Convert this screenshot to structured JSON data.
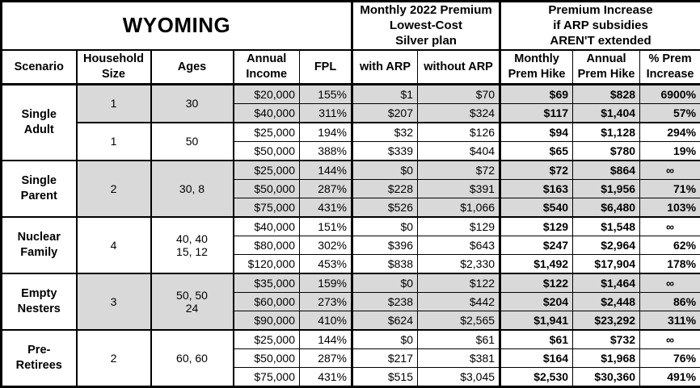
{
  "table": {
    "title": "WYOMING",
    "section_headers": {
      "premium": "Monthly 2022 Premium\nLowest-Cost\nSilver plan",
      "increase": "Premium Increase\nif ARP subsidies\nAREN'T extended"
    },
    "columns": [
      "Scenario",
      "Household\nSize",
      "Ages",
      "Annual\nIncome",
      "FPL",
      "with ARP",
      "without ARP",
      "Monthly\nPrem Hike",
      "Annual\nPrem Hike",
      "% Prem\nIncrease"
    ],
    "colors": {
      "shaded_row": "#d9d9d9",
      "border": "#000000",
      "background": "#ffffff"
    },
    "groups": [
      {
        "scenario": "Single\nAdult",
        "subgroups": [
          {
            "household": "1",
            "ages": "30",
            "shaded": true,
            "rows": [
              {
                "income": "$20,000",
                "fpl": "155%",
                "with_arp": "$1",
                "without_arp": "$70",
                "monthly_hike": "$69",
                "annual_hike": "$828",
                "pct_increase": "6900%"
              },
              {
                "income": "$40,000",
                "fpl": "311%",
                "with_arp": "$207",
                "without_arp": "$324",
                "monthly_hike": "$117",
                "annual_hike": "$1,404",
                "pct_increase": "57%"
              }
            ]
          },
          {
            "household": "1",
            "ages": "50",
            "shaded": false,
            "rows": [
              {
                "income": "$25,000",
                "fpl": "194%",
                "with_arp": "$32",
                "without_arp": "$126",
                "monthly_hike": "$94",
                "annual_hike": "$1,128",
                "pct_increase": "294%"
              },
              {
                "income": "$50,000",
                "fpl": "388%",
                "with_arp": "$339",
                "without_arp": "$404",
                "monthly_hike": "$65",
                "annual_hike": "$780",
                "pct_increase": "19%"
              }
            ]
          }
        ]
      },
      {
        "scenario": "Single\nParent",
        "subgroups": [
          {
            "household": "2",
            "ages": "30, 8",
            "shaded": true,
            "rows": [
              {
                "income": "$25,000",
                "fpl": "144%",
                "with_arp": "$0",
                "without_arp": "$72",
                "monthly_hike": "$72",
                "annual_hike": "$864",
                "pct_increase": "∞"
              },
              {
                "income": "$50,000",
                "fpl": "287%",
                "with_arp": "$228",
                "without_arp": "$391",
                "monthly_hike": "$163",
                "annual_hike": "$1,956",
                "pct_increase": "71%"
              },
              {
                "income": "$75,000",
                "fpl": "431%",
                "with_arp": "$526",
                "without_arp": "$1,066",
                "monthly_hike": "$540",
                "annual_hike": "$6,480",
                "pct_increase": "103%"
              }
            ]
          }
        ]
      },
      {
        "scenario": "Nuclear\nFamily",
        "subgroups": [
          {
            "household": "4",
            "ages": "40, 40\n15, 12",
            "shaded": false,
            "rows": [
              {
                "income": "$40,000",
                "fpl": "151%",
                "with_arp": "$0",
                "without_arp": "$129",
                "monthly_hike": "$129",
                "annual_hike": "$1,548",
                "pct_increase": "∞"
              },
              {
                "income": "$80,000",
                "fpl": "302%",
                "with_arp": "$396",
                "without_arp": "$643",
                "monthly_hike": "$247",
                "annual_hike": "$2,964",
                "pct_increase": "62%"
              },
              {
                "income": "$120,000",
                "fpl": "453%",
                "with_arp": "$838",
                "without_arp": "$2,330",
                "monthly_hike": "$1,492",
                "annual_hike": "$17,904",
                "pct_increase": "178%"
              }
            ]
          }
        ]
      },
      {
        "scenario": "Empty\nNesters",
        "subgroups": [
          {
            "household": "3",
            "ages": "50, 50\n24",
            "shaded": true,
            "rows": [
              {
                "income": "$35,000",
                "fpl": "159%",
                "with_arp": "$0",
                "without_arp": "$122",
                "monthly_hike": "$122",
                "annual_hike": "$1,464",
                "pct_increase": "∞"
              },
              {
                "income": "$60,000",
                "fpl": "273%",
                "with_arp": "$238",
                "without_arp": "$442",
                "monthly_hike": "$204",
                "annual_hike": "$2,448",
                "pct_increase": "86%"
              },
              {
                "income": "$90,000",
                "fpl": "410%",
                "with_arp": "$624",
                "without_arp": "$2,565",
                "monthly_hike": "$1,941",
                "annual_hike": "$23,292",
                "pct_increase": "311%"
              }
            ]
          }
        ]
      },
      {
        "scenario": "Pre-\nRetirees",
        "subgroups": [
          {
            "household": "2",
            "ages": "60, 60",
            "shaded": false,
            "rows": [
              {
                "income": "$25,000",
                "fpl": "144%",
                "with_arp": "$0",
                "without_arp": "$61",
                "monthly_hike": "$61",
                "annual_hike": "$732",
                "pct_increase": "∞"
              },
              {
                "income": "$50,000",
                "fpl": "287%",
                "with_arp": "$217",
                "without_arp": "$381",
                "monthly_hike": "$164",
                "annual_hike": "$1,968",
                "pct_increase": "76%"
              },
              {
                "income": "$75,000",
                "fpl": "431%",
                "with_arp": "$515",
                "without_arp": "$3,045",
                "monthly_hike": "$2,530",
                "annual_hike": "$30,360",
                "pct_increase": "491%"
              }
            ]
          }
        ]
      }
    ]
  },
  "chart_data": {
    "type": "table",
    "title": "WYOMING",
    "section_headers": [
      "Monthly 2022 Premium Lowest-Cost Silver plan",
      "Premium Increase if ARP subsidies AREN'T extended"
    ],
    "columns": [
      "Scenario",
      "Household Size",
      "Ages",
      "Annual Income",
      "FPL",
      "with ARP",
      "without ARP",
      "Monthly Prem Hike",
      "Annual Prem Hike",
      "% Prem Increase"
    ],
    "rows": [
      [
        "Single Adult",
        "1",
        "30",
        "$20,000",
        "155%",
        "$1",
        "$70",
        "$69",
        "$828",
        "6900%"
      ],
      [
        "Single Adult",
        "1",
        "30",
        "$40,000",
        "311%",
        "$207",
        "$324",
        "$117",
        "$1,404",
        "57%"
      ],
      [
        "Single Adult",
        "1",
        "50",
        "$25,000",
        "194%",
        "$32",
        "$126",
        "$94",
        "$1,128",
        "294%"
      ],
      [
        "Single Adult",
        "1",
        "50",
        "$50,000",
        "388%",
        "$339",
        "$404",
        "$65",
        "$780",
        "19%"
      ],
      [
        "Single Parent",
        "2",
        "30, 8",
        "$25,000",
        "144%",
        "$0",
        "$72",
        "$72",
        "$864",
        "∞"
      ],
      [
        "Single Parent",
        "2",
        "30, 8",
        "$50,000",
        "287%",
        "$228",
        "$391",
        "$163",
        "$1,956",
        "71%"
      ],
      [
        "Single Parent",
        "2",
        "30, 8",
        "$75,000",
        "431%",
        "$526",
        "$1,066",
        "$540",
        "$6,480",
        "103%"
      ],
      [
        "Nuclear Family",
        "4",
        "40, 40, 15, 12",
        "$40,000",
        "151%",
        "$0",
        "$129",
        "$129",
        "$1,548",
        "∞"
      ],
      [
        "Nuclear Family",
        "4",
        "40, 40, 15, 12",
        "$80,000",
        "302%",
        "$396",
        "$643",
        "$247",
        "$2,964",
        "62%"
      ],
      [
        "Nuclear Family",
        "4",
        "40, 40, 15, 12",
        "$120,000",
        "453%",
        "$838",
        "$2,330",
        "$1,492",
        "$17,904",
        "178%"
      ],
      [
        "Empty Nesters",
        "3",
        "50, 50, 24",
        "$35,000",
        "159%",
        "$0",
        "$122",
        "$122",
        "$1,464",
        "∞"
      ],
      [
        "Empty Nesters",
        "3",
        "50, 50, 24",
        "$60,000",
        "273%",
        "$238",
        "$442",
        "$204",
        "$2,448",
        "86%"
      ],
      [
        "Empty Nesters",
        "3",
        "50, 50, 24",
        "$90,000",
        "410%",
        "$624",
        "$2,565",
        "$1,941",
        "$23,292",
        "311%"
      ],
      [
        "Pre-Retirees",
        "2",
        "60, 60",
        "$25,000",
        "144%",
        "$0",
        "$61",
        "$61",
        "$732",
        "∞"
      ],
      [
        "Pre-Retirees",
        "2",
        "60, 60",
        "$50,000",
        "287%",
        "$217",
        "$381",
        "$164",
        "$1,968",
        "76%"
      ],
      [
        "Pre-Retirees",
        "2",
        "60, 60",
        "$75,000",
        "431%",
        "$515",
        "$3,045",
        "$2,530",
        "$30,360",
        "491%"
      ]
    ]
  }
}
